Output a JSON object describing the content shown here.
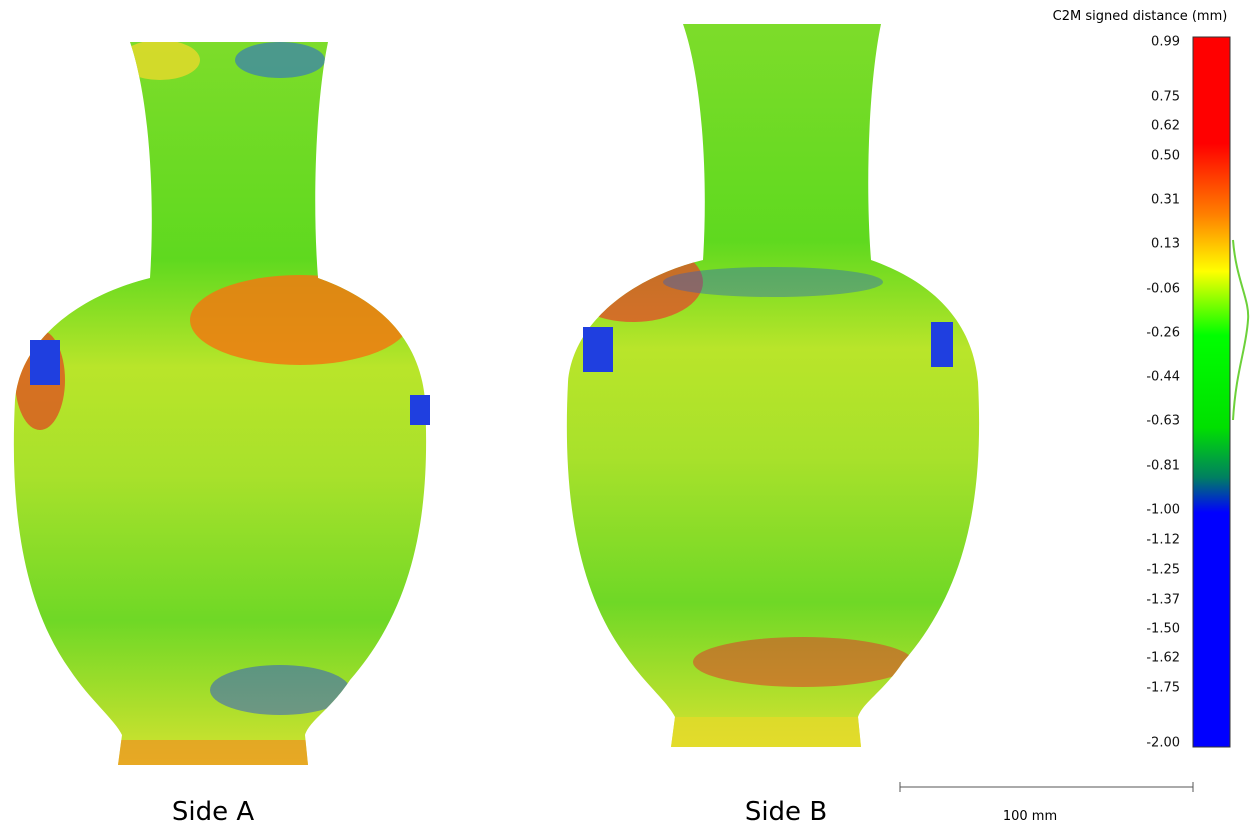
{
  "panels": [
    {
      "label": "Side A"
    },
    {
      "label": "Side B"
    }
  ],
  "colorbar": {
    "title": "C2M signed distance (mm)",
    "ticks": [
      "0.99",
      "0.75",
      "0.62",
      "0.50",
      "0.31",
      "0.13",
      "-0.06",
      "-0.26",
      "-0.44",
      "-0.63",
      "-0.81",
      "-1.00",
      "-1.12",
      "-1.25",
      "-1.37",
      "-1.50",
      "-1.62",
      "-1.75",
      "-2.00"
    ]
  },
  "scale_bar": {
    "label": "100 mm"
  }
}
